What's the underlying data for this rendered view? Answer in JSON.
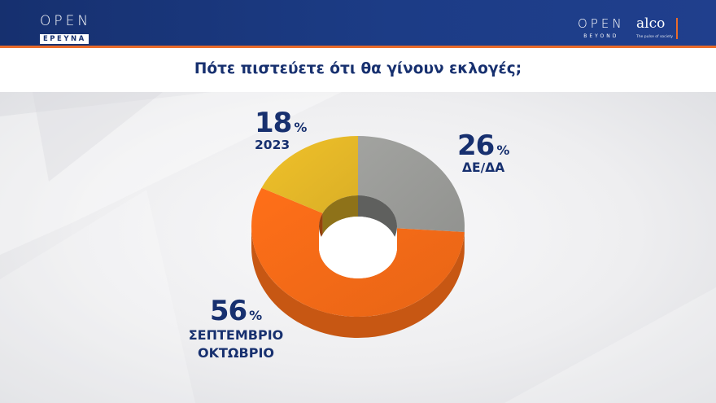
{
  "header": {
    "left_logo_main": "OPEN",
    "left_logo_sub": "ΕΡΕΥΝΑ",
    "right_logo_main": "OPEN",
    "right_logo_sub": "BEYOND",
    "partner_logo": "alco",
    "partner_tagline": "The pulse of society"
  },
  "title": "Πότε πιστεύετε ότι θα γίνουν εκλογές;",
  "colors": {
    "header_bg": "#1c3c86",
    "accent": "#ea6b2a",
    "title_text": "#17306f",
    "slice_gray": "#9a9b98",
    "slice_yellow": "#e5b828",
    "slice_orange": "#f36a17"
  },
  "chart_data": {
    "type": "pie",
    "style": "3d-donut",
    "title": "Πότε πιστεύετε ότι θα γίνουν εκλογές;",
    "unit": "%",
    "slices": [
      {
        "label": "ΔΕ/ΔΑ",
        "value": 26,
        "color": "#9a9b98"
      },
      {
        "label": "ΣΕΠΤΕΜΒΡΙΟ ΟΚΤΩΒΡΙΟ",
        "line1": "ΣΕΠΤΕΜΒΡΙΟ",
        "line2": "ΟΚΤΩΒΡΙΟ",
        "value": 56,
        "color": "#f36a17"
      },
      {
        "label": "2023",
        "value": 18,
        "color": "#e5b828"
      }
    ],
    "percent_sign": "%"
  }
}
